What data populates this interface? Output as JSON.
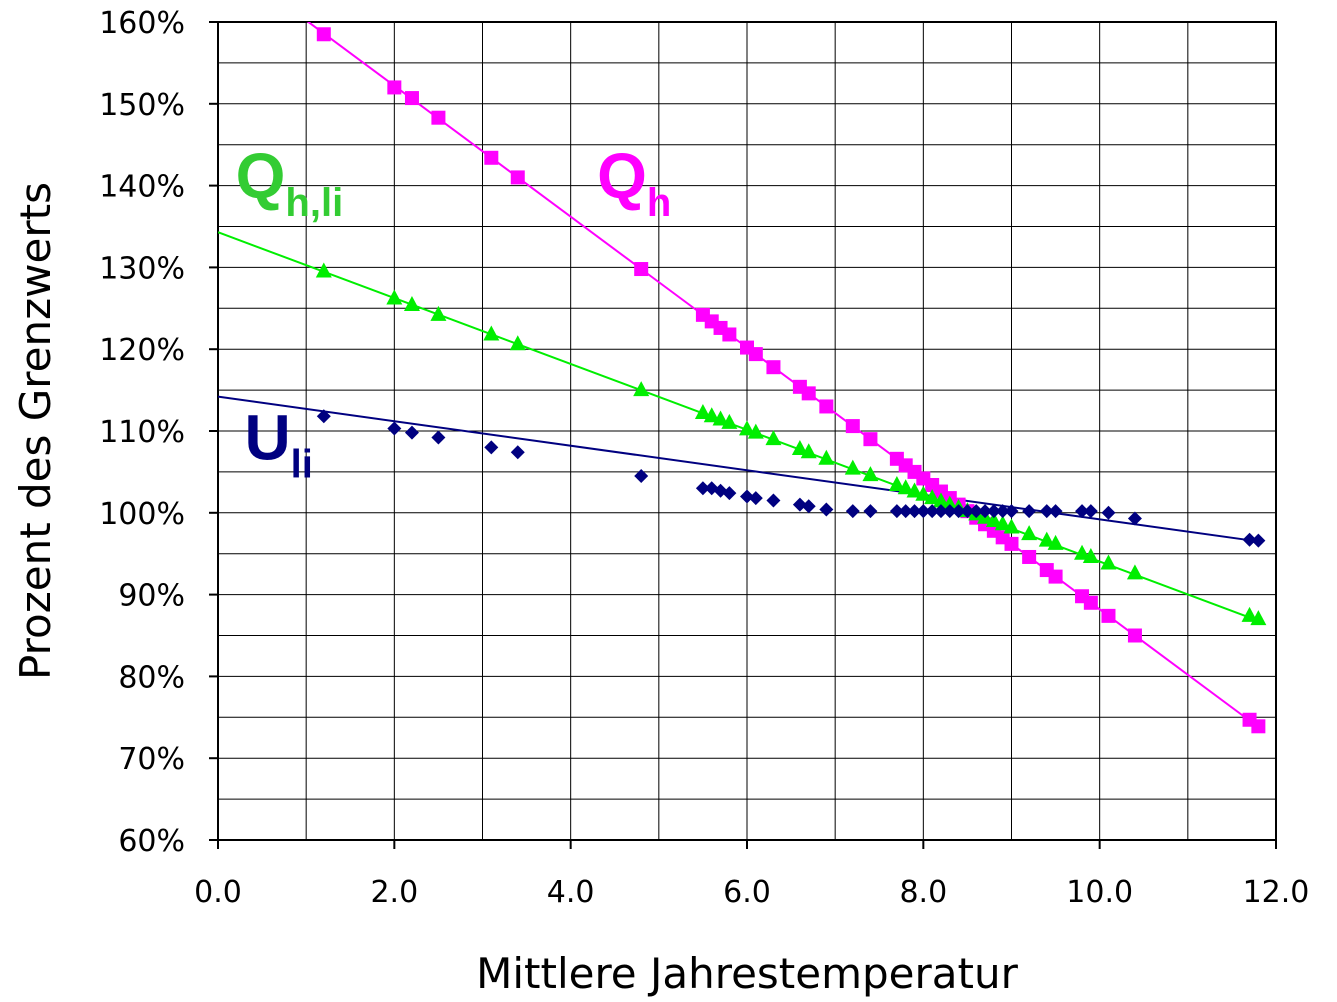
{
  "chart_data": {
    "type": "line",
    "title": "",
    "xlabel": "Mittlere Jahrestemperatur",
    "ylabel": "Prozent des Grenzwerts",
    "xlim": [
      0,
      12
    ],
    "ylim": [
      60,
      160
    ],
    "x_ticks": [
      0,
      2,
      4,
      6,
      8,
      10,
      12
    ],
    "x_tick_labels": [
      "0.0",
      "2.0",
      "4.0",
      "6.0",
      "8.0",
      "10.0",
      "12.0"
    ],
    "x_minor_step": 1,
    "y_ticks": [
      60,
      70,
      80,
      90,
      100,
      110,
      120,
      130,
      140,
      150,
      160
    ],
    "y_tick_labels": [
      "60%",
      "70%",
      "80%",
      "90%",
      "100%",
      "110%",
      "120%",
      "130%",
      "140%",
      "150%",
      "160%"
    ],
    "y_minor_step": 5,
    "grid": true,
    "legend": "none",
    "series": [
      {
        "key": "qh",
        "label_main": "Q",
        "label_sub": "h",
        "label_anchor": [
          4.3,
          138.5
        ],
        "color": "#ff00ff",
        "marker": "square",
        "trend": [
          [
            0.9,
            161
          ],
          [
            11.8,
            73.8
          ]
        ],
        "x": [
          1.2,
          2.0,
          2.2,
          2.5,
          3.1,
          3.4,
          4.8,
          5.5,
          5.6,
          5.7,
          5.8,
          6.0,
          6.1,
          6.3,
          6.6,
          6.7,
          6.9,
          7.2,
          7.4,
          7.7,
          7.8,
          7.9,
          8.0,
          8.1,
          8.2,
          8.3,
          8.4,
          8.5,
          8.6,
          8.7,
          8.8,
          8.9,
          9.0,
          9.2,
          9.4,
          9.5,
          9.8,
          9.9,
          10.1,
          10.4,
          11.7,
          11.8
        ],
        "y": [
          158.5,
          152,
          150.7,
          148.3,
          143.4,
          141,
          129.8,
          124.2,
          123.4,
          122.6,
          121.8,
          120.2,
          119.4,
          117.8,
          115.4,
          114.6,
          113,
          110.6,
          109,
          106.6,
          105.8,
          105,
          104.2,
          103.4,
          102.6,
          101.8,
          101,
          100.2,
          99.4,
          98.6,
          97.8,
          97,
          96.2,
          94.6,
          93,
          92.2,
          89.8,
          89,
          87.4,
          85,
          74.7,
          73.9
        ]
      },
      {
        "key": "qhli",
        "label_main": "Q",
        "label_sub": "h,li",
        "label_anchor": [
          0.2,
          138.5
        ],
        "color": "#00ee00",
        "label_color": "#33cc33",
        "marker": "triangle",
        "trend": [
          [
            0.0,
            134.3
          ],
          [
            11.8,
            86.8
          ]
        ],
        "x": [
          1.2,
          2.0,
          2.2,
          2.5,
          3.1,
          3.4,
          4.8,
          5.5,
          5.6,
          5.7,
          5.8,
          6.0,
          6.1,
          6.3,
          6.6,
          6.7,
          6.9,
          7.2,
          7.4,
          7.7,
          7.8,
          7.9,
          8.0,
          8.1,
          8.2,
          8.3,
          8.4,
          8.5,
          8.6,
          8.7,
          8.8,
          8.9,
          9.0,
          9.2,
          9.4,
          9.5,
          9.8,
          9.9,
          10.1,
          10.4,
          11.7,
          11.8
        ],
        "y": [
          129.5,
          126.2,
          125.4,
          124.2,
          121.8,
          120.6,
          115,
          112.2,
          111.8,
          111.4,
          111,
          110.2,
          109.8,
          109,
          107.8,
          107.4,
          106.6,
          105.4,
          104.6,
          103.4,
          103,
          102.6,
          102.2,
          101.8,
          101.4,
          101,
          100.6,
          100.2,
          99.8,
          99.4,
          99,
          98.6,
          98.2,
          97.4,
          96.6,
          96.2,
          95,
          94.6,
          93.8,
          92.6,
          87.4,
          87
        ]
      },
      {
        "key": "uli",
        "label_main": "U",
        "label_sub": "li",
        "label_anchor": [
          0.3,
          106.5
        ],
        "color": "#000080",
        "marker": "diamond",
        "trend": [
          [
            0.0,
            114.2
          ],
          [
            11.8,
            96.5
          ]
        ],
        "x": [
          1.2,
          2.0,
          2.2,
          2.5,
          3.1,
          3.4,
          4.8,
          5.5,
          5.6,
          5.7,
          5.8,
          6.0,
          6.1,
          6.3,
          6.6,
          6.7,
          6.9,
          7.2,
          7.4,
          7.7,
          7.8,
          7.9,
          8.0,
          8.1,
          8.2,
          8.3,
          8.4,
          8.5,
          8.6,
          8.7,
          8.8,
          8.9,
          9.0,
          9.2,
          9.4,
          9.5,
          9.8,
          9.9,
          10.1,
          10.4,
          11.7,
          11.8
        ],
        "y": [
          111.8,
          110.3,
          109.8,
          109.2,
          108,
          107.4,
          104.5,
          103,
          103,
          102.7,
          102.4,
          102,
          101.8,
          101.5,
          101,
          100.8,
          100.4,
          100.2,
          100.2,
          100.2,
          100.2,
          100.2,
          100.2,
          100.2,
          100.2,
          100.2,
          100.2,
          100.2,
          100.2,
          100.2,
          100.2,
          100.2,
          100.2,
          100.2,
          100.2,
          100.2,
          100.2,
          100.2,
          100,
          99.3,
          96.7,
          96.6
        ]
      }
    ]
  }
}
